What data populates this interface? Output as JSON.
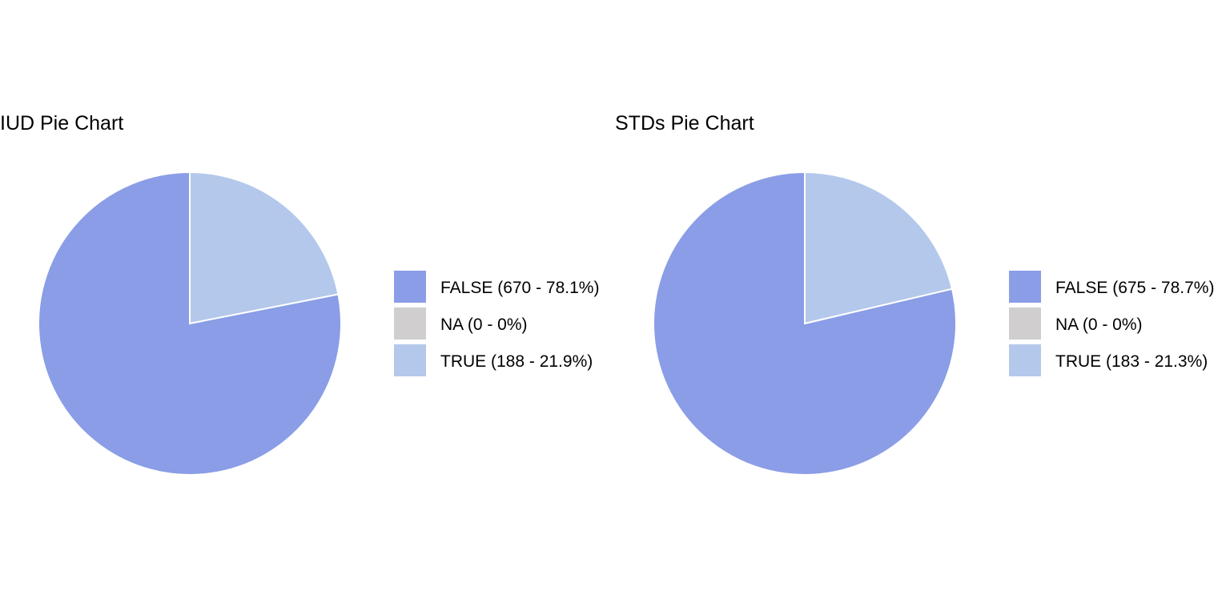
{
  "chart_data": [
    {
      "type": "pie",
      "title": "IUD Pie Chart",
      "start_angle": "12 o'clock",
      "direction": "clockwise",
      "order": [
        "TRUE",
        "FALSE"
      ],
      "slices": [
        {
          "category": "FALSE",
          "value": 670,
          "percent": 78.1,
          "color": "#8a9de6",
          "legend_label": "FALSE (670 - 78.1%)"
        },
        {
          "category": "NA",
          "value": 0,
          "percent": 0,
          "color": "#d0cece",
          "legend_label": "NA (0 - 0%)"
        },
        {
          "category": "TRUE",
          "value": 188,
          "percent": 21.9,
          "color": "#b4c8eb",
          "legend_label": "TRUE (188 - 21.9%)"
        }
      ],
      "legend_position": "right"
    },
    {
      "type": "pie",
      "title": "STDs Pie Chart",
      "start_angle": "12 o'clock",
      "direction": "clockwise",
      "order": [
        "TRUE",
        "FALSE"
      ],
      "slices": [
        {
          "category": "FALSE",
          "value": 675,
          "percent": 78.7,
          "color": "#8a9de6",
          "legend_label": "FALSE (675 - 78.7%)"
        },
        {
          "category": "NA",
          "value": 0,
          "percent": 0,
          "color": "#d0cece",
          "legend_label": "NA (0 - 0%)"
        },
        {
          "category": "TRUE",
          "value": 183,
          "percent": 21.3,
          "color": "#b4c8eb",
          "legend_label": "TRUE (183 - 21.3%)"
        }
      ],
      "legend_position": "right"
    }
  ],
  "colors": {
    "background": "#ffffff",
    "slice_border": "#ffffff",
    "text": "#000000"
  }
}
